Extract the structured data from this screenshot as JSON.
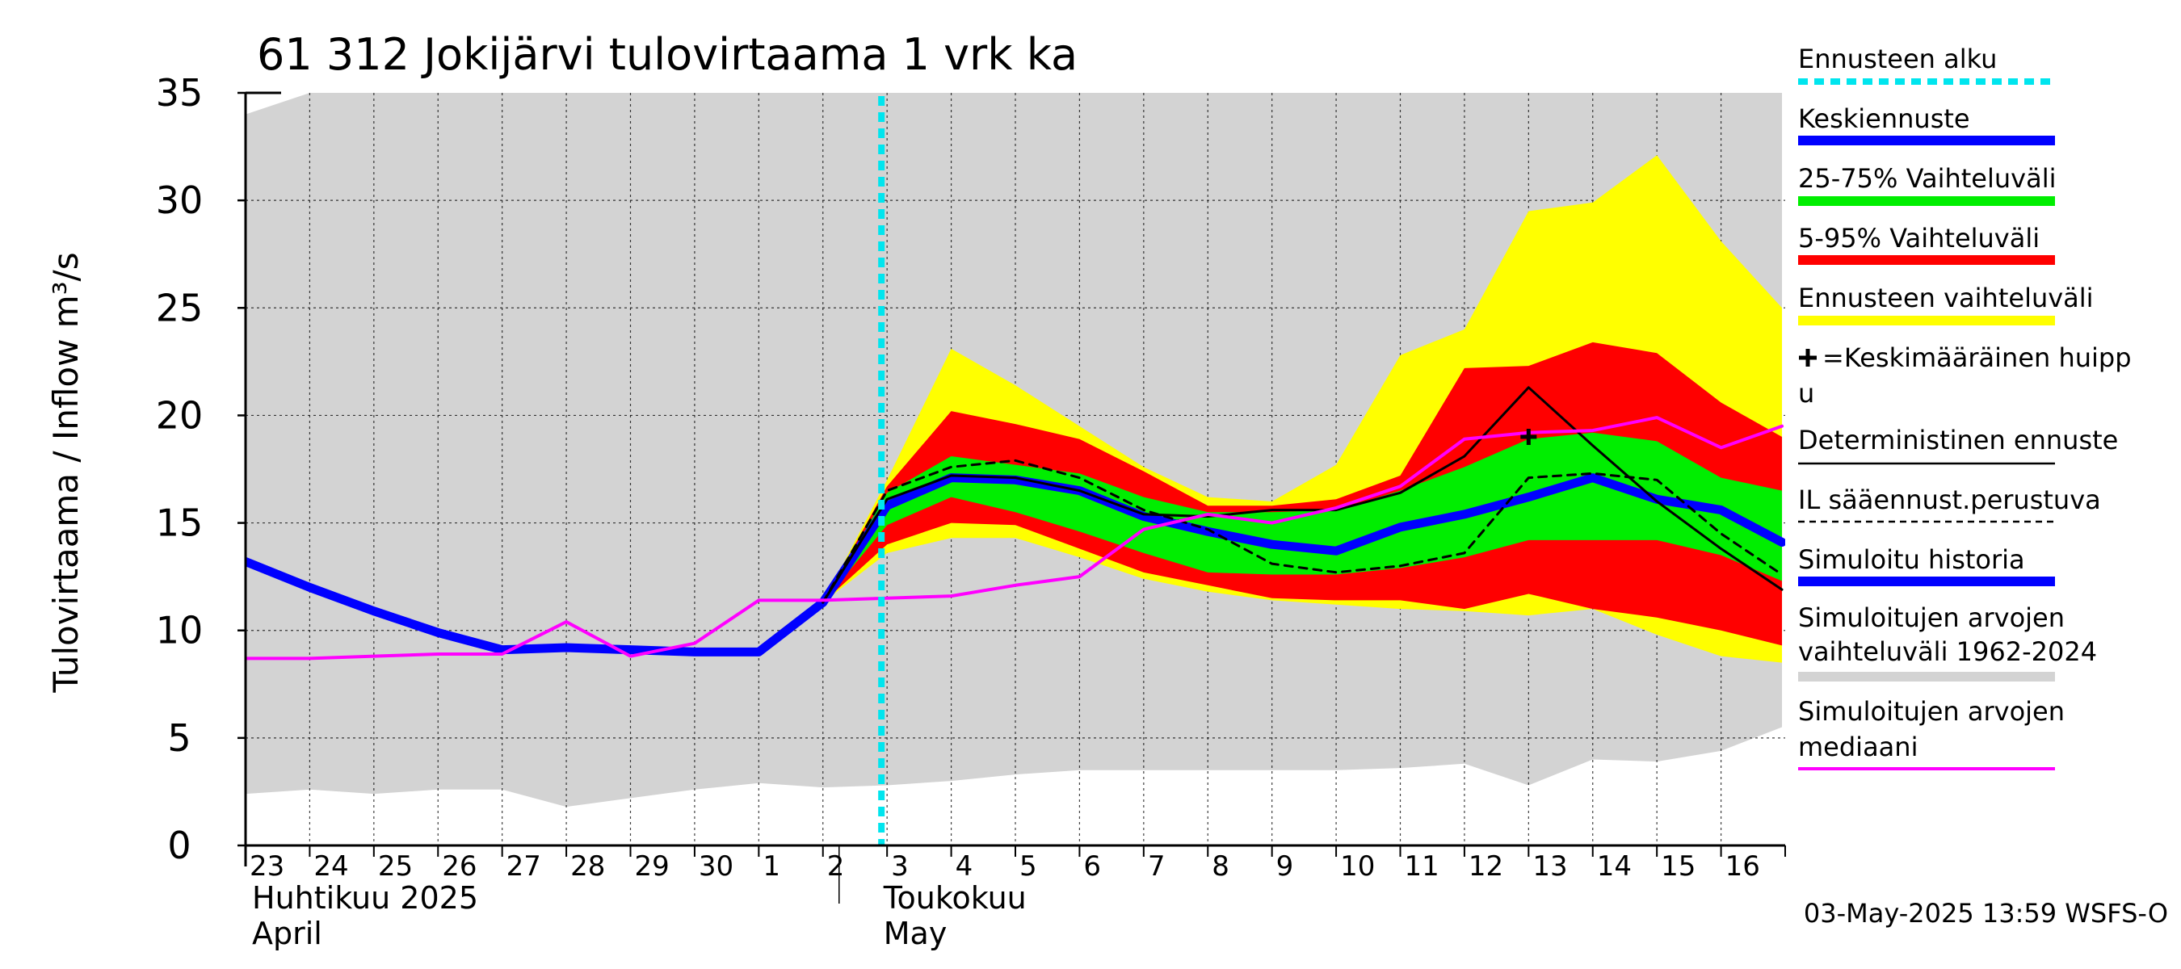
{
  "chart_data": {
    "type": "area",
    "title": "61 312 Jokijärvi tulovirtaama 1 vrk ka",
    "ylabel": "Tulovirtaama / Inflow    m³/s",
    "ylim": [
      0,
      35
    ],
    "yticks": [
      0,
      5,
      10,
      15,
      20,
      25,
      30,
      35
    ],
    "x_labels": [
      "23",
      "24",
      "25",
      "26",
      "27",
      "28",
      "29",
      "30",
      "1",
      "2",
      "3",
      "4",
      "5",
      "6",
      "7",
      "8",
      "9",
      "10",
      "11",
      "12",
      "13",
      "14",
      "15",
      "16"
    ],
    "month_labels": [
      {
        "line1": "Huhtikuu  2025",
        "line2": "April",
        "start_day": 0
      },
      {
        "line1": "Toukokuu",
        "line2": "May",
        "start_day": 9
      }
    ],
    "grid": true,
    "forecast_start_day": 10,
    "sim_range": {
      "name": "Simuloitujen arvojen vaihteluväli 1962-2024",
      "color": "#d3d3d3",
      "x": [
        0,
        1,
        2,
        3,
        4,
        5,
        6,
        7,
        8,
        9,
        10,
        11,
        12,
        13,
        14,
        15,
        16,
        17,
        18,
        19,
        20,
        21,
        22,
        23,
        23.95
      ],
      "lower": [
        2.4,
        2.6,
        2.4,
        2.6,
        2.6,
        1.8,
        2.2,
        2.6,
        2.9,
        2.7,
        2.8,
        3.0,
        3.3,
        3.5,
        3.5,
        3.5,
        3.5,
        3.5,
        3.6,
        3.8,
        2.8,
        4.0,
        3.9,
        4.4,
        5.5
      ],
      "upper": [
        34.0,
        35.0,
        35.0,
        35.0,
        35.0,
        35.0,
        35.0,
        35.0,
        35.0,
        35.0,
        35.0,
        35.0,
        35.0,
        35.0,
        35.0,
        35.0,
        35.0,
        35.0,
        35.0,
        35.0,
        35.0,
        35.0,
        35.0,
        35.0,
        35.0
      ]
    },
    "forecast_range": {
      "name": "Ennusteen vaihteluväli",
      "color": "#ffff00",
      "x": [
        9,
        10,
        11,
        12,
        13,
        14,
        15,
        16,
        17,
        18,
        19,
        20,
        21,
        22,
        23,
        23.95
      ],
      "lower": [
        11.3,
        13.6,
        14.3,
        14.3,
        13.4,
        12.4,
        11.8,
        11.4,
        11.2,
        11.0,
        10.9,
        10.7,
        11.0,
        9.8,
        8.8,
        8.5
      ],
      "upper": [
        11.3,
        17.0,
        23.1,
        21.4,
        19.5,
        17.6,
        16.2,
        16.0,
        17.7,
        22.8,
        24.0,
        29.5,
        29.9,
        32.1,
        28.1,
        25.0
      ]
    },
    "range_5_95": {
      "name": "5-95% Vaihteluväli",
      "color": "#ff0000",
      "x": [
        9,
        10,
        11,
        12,
        13,
        14,
        15,
        16,
        17,
        18,
        19,
        20,
        21,
        22,
        23,
        23.95
      ],
      "lower": [
        11.3,
        14.0,
        15.0,
        14.9,
        13.8,
        12.7,
        12.1,
        11.5,
        11.4,
        11.4,
        11.0,
        11.7,
        11.0,
        10.6,
        10.0,
        9.3
      ],
      "upper": [
        11.3,
        16.7,
        20.2,
        19.6,
        18.9,
        17.4,
        15.8,
        15.8,
        16.1,
        17.2,
        22.2,
        22.3,
        23.4,
        22.9,
        20.6,
        19.0
      ]
    },
    "range_25_75": {
      "name": "25-75% Vaihteluväli",
      "color": "#00ee00",
      "x": [
        9,
        10,
        11,
        12,
        13,
        14,
        15,
        16,
        17,
        18,
        19,
        20,
        21,
        22,
        23,
        23.95
      ],
      "lower": [
        11.3,
        14.9,
        16.2,
        15.5,
        14.6,
        13.6,
        12.7,
        12.6,
        12.6,
        12.9,
        13.4,
        14.2,
        14.2,
        14.2,
        13.5,
        12.3
      ],
      "upper": [
        11.3,
        16.4,
        18.1,
        17.7,
        17.3,
        16.2,
        15.5,
        15.5,
        15.6,
        16.5,
        17.6,
        18.9,
        19.2,
        18.8,
        17.1,
        16.5
      ]
    },
    "series": [
      {
        "name": "Simuloitu historia",
        "color": "#0000ff",
        "width": 11,
        "x": [
          0,
          1,
          2,
          3,
          4,
          5,
          6,
          7,
          8,
          9
        ],
        "values": [
          13.2,
          12.0,
          10.9,
          9.9,
          9.1,
          9.2,
          9.1,
          9.0,
          9.0,
          11.3
        ]
      },
      {
        "name": "Keskiennuste",
        "color": "#0000ff",
        "width": 11,
        "x": [
          9,
          10,
          11,
          12,
          13,
          14,
          15,
          16,
          17,
          18,
          19,
          20,
          21,
          22,
          23,
          23.95
        ],
        "values": [
          11.3,
          15.8,
          17.1,
          17.0,
          16.5,
          15.3,
          14.6,
          14.0,
          13.7,
          14.8,
          15.4,
          16.2,
          17.1,
          16.1,
          15.6,
          14.1
        ]
      },
      {
        "name": "Deterministinen ennuste",
        "color": "#000000",
        "width": 3,
        "x": [
          9,
          10,
          11,
          12,
          13,
          14,
          15,
          16,
          17,
          18,
          19,
          20,
          21,
          22,
          23,
          23.95
        ],
        "values": [
          11.3,
          16.1,
          17.2,
          17.1,
          16.5,
          15.4,
          15.3,
          15.6,
          15.6,
          16.4,
          18.1,
          21.3,
          18.6,
          16.0,
          13.8,
          11.9
        ]
      },
      {
        "name": "IL sääennust.perustuva",
        "color": "#000000",
        "width": 3,
        "dash": "10,8",
        "x": [
          9,
          10,
          11,
          12,
          13,
          14,
          15,
          16,
          17,
          18,
          19,
          20,
          21,
          22,
          23,
          23.95
        ],
        "values": [
          11.3,
          16.5,
          17.6,
          17.9,
          17.1,
          15.6,
          14.7,
          13.1,
          12.7,
          13.0,
          13.6,
          17.1,
          17.3,
          17.0,
          14.5,
          12.6
        ]
      },
      {
        "name": "Simuloitujen arvojen mediaani",
        "color": "#ff00ff",
        "width": 4,
        "x": [
          0,
          1,
          2,
          3,
          4,
          5,
          6,
          7,
          8,
          9,
          10,
          11,
          12,
          13,
          14,
          15,
          16,
          17,
          18,
          19,
          20,
          21,
          22,
          23,
          23.95
        ],
        "values": [
          8.7,
          8.7,
          8.8,
          8.9,
          8.9,
          10.4,
          8.8,
          9.4,
          11.4,
          11.4,
          11.5,
          11.6,
          12.1,
          12.5,
          14.7,
          15.4,
          15.0,
          15.7,
          16.7,
          18.9,
          19.2,
          19.3,
          19.9,
          18.5,
          19.5
        ]
      }
    ],
    "mean_peak": {
      "name": "+=Keskimääräinen huippu",
      "x": 20,
      "value": 19.0
    },
    "legend": {
      "position": "right",
      "items": [
        {
          "label": "Ennusteen alku",
          "color": "#00e5ee",
          "style": "dotted"
        },
        {
          "label": "Keskiennuste",
          "color": "#0000ff",
          "style": "thick"
        },
        {
          "label": "25-75% Vaihteluväli",
          "color": "#00ee00",
          "style": "thick"
        },
        {
          "label": "5-95% Vaihteluväli",
          "color": "#ff0000",
          "style": "thick"
        },
        {
          "label": "Ennusteen vaihteluväli",
          "color": "#ffff00",
          "style": "thick"
        },
        {
          "label": "+=Keskimääräinen huipp u",
          "color": "#000000",
          "style": "marker"
        },
        {
          "label": "Deterministinen ennuste",
          "color": "#000000",
          "style": "thin"
        },
        {
          "label": "IL sääennust.perustuva",
          "color": "#000000",
          "style": "dashed"
        },
        {
          "label": "Simuloitu historia",
          "color": "#0000ff",
          "style": "thick"
        },
        {
          "label": "Simuloitujen arvojen vaihteluväli 1962-2024",
          "color": "#d3d3d3",
          "style": "thick"
        },
        {
          "label": "Simuloitujen arvojen mediaani",
          "color": "#ff00ff",
          "style": "medium"
        }
      ]
    }
  },
  "footer": {
    "timestamp": "03-May-2025 13:59 WSFS-O"
  }
}
